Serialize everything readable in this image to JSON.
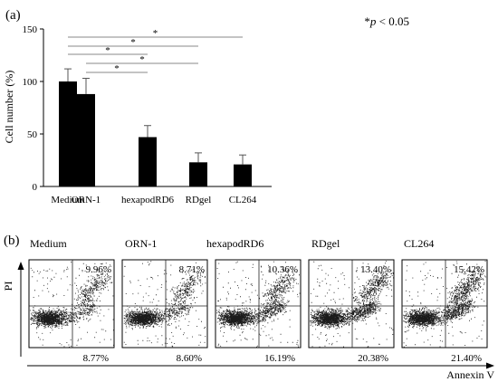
{
  "panel_a": {
    "label": "(a)",
    "ylabel": "Cell number (%)",
    "significance_note": "*p < 0.05",
    "significance_star": "*",
    "significance_italic": "p",
    "significance_rest": " < 0.05"
  },
  "panel_b": {
    "label": "(b)",
    "yaxis_label": "PI",
    "xaxis_label": "Annexin V",
    "plots": [
      {
        "name": "Medium",
        "upper_right": "9.96%",
        "lower_right": "8.77%"
      },
      {
        "name": "ORN-1",
        "upper_right": "8.71%",
        "lower_right": "8.60%"
      },
      {
        "name": "hexapodRD6",
        "upper_right": "10.36%",
        "lower_right": "16.19%"
      },
      {
        "name": "RDgel",
        "upper_right": "13.40%",
        "lower_right": "20.38%"
      },
      {
        "name": "CL264",
        "upper_right": "15.42%",
        "lower_right": "21.40%"
      }
    ]
  },
  "chart_data": [
    {
      "type": "bar",
      "title": "",
      "xlabel": "",
      "ylabel": "Cell number (%)",
      "categories": [
        "Medium",
        "ORN-1",
        "hexapodRD6",
        "RDgel",
        "CL264"
      ],
      "values": [
        100,
        88,
        47,
        23,
        21
      ],
      "error": [
        12,
        15,
        11,
        9,
        9
      ],
      "ylim": [
        0,
        150
      ],
      "yticks": [
        0,
        50,
        100,
        150
      ],
      "grid": false,
      "significance_brackets": [
        {
          "from": "Medium",
          "to": "CL264",
          "label": "*"
        },
        {
          "from": "Medium",
          "to": "RDgel",
          "label": "*"
        },
        {
          "from": "Medium",
          "to": "hexapodRD6",
          "label": "*"
        },
        {
          "from": "ORN-1",
          "to": "RDgel",
          "label": "*"
        },
        {
          "from": "ORN-1",
          "to": "hexapodRD6",
          "label": "*"
        }
      ]
    },
    {
      "type": "scatter",
      "title": "",
      "xlabel": "Annexin V",
      "ylabel": "PI",
      "panels": [
        "Medium",
        "ORN-1",
        "hexapodRD6",
        "RDgel",
        "CL264"
      ],
      "quadrant_percent": {
        "upper_right": [
          9.96,
          8.71,
          10.36,
          13.4,
          15.42
        ],
        "lower_right": [
          8.77,
          8.6,
          16.19,
          20.38,
          21.4
        ]
      }
    }
  ]
}
